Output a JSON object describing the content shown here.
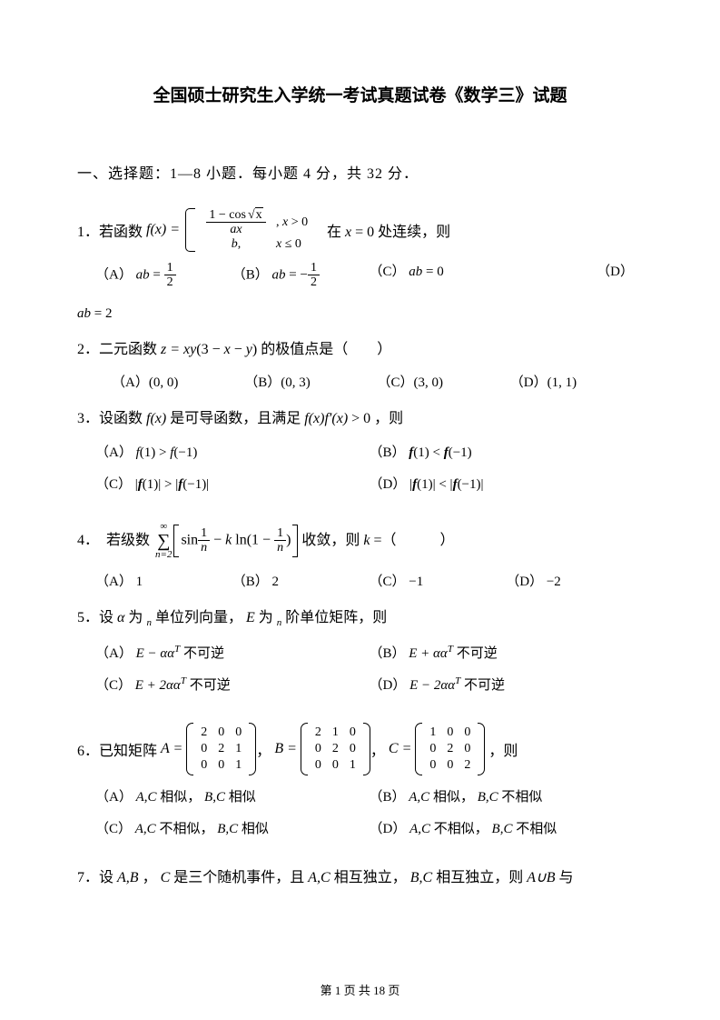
{
  "title": "全国硕士研究生入学统一考试真题试卷《数学三》试题",
  "section": "一、选择题：1—8 小题．每小题 4 分，共 32 分．",
  "q1": {
    "lead": "1．若函数",
    "func": "f(x) =",
    "row1a": "(1 − cos√x) / ax",
    "row1b": ", x > 0",
    "row2a": "b,",
    "row2b": "x ≤ 0",
    "tail": "在 x = 0 处连续，则",
    "optA": "（A） ab = 1/2",
    "optB": "（B） ab = −1/2",
    "optC": "（C） ab = 0",
    "optD": "（D）",
    "optD2": "ab = 2"
  },
  "q2": {
    "text": "2．二元函数 z = xy(3 − x − y) 的极值点是（　　）",
    "optA": "（A）(0, 0)",
    "optB": "（B）(0, 3)",
    "optC": "（C）(3, 0)",
    "optD": "（D）(1, 1)"
  },
  "q3": {
    "text": "3．设函数 f(x) 是可导函数，且满足 f(x)f′(x) > 0 ，则",
    "optA": "（A） f(1) > f(−1)",
    "optB": "（B） f(1) < f(−1)",
    "optC": "（C） |f(1)| > |f(−1)|",
    "optD": "（D） |f(1)| < |f(−1)|"
  },
  "q4": {
    "lead": "4．　若级数",
    "tail": "收敛，则 k =（　　　）",
    "optA": "（A） 1",
    "optB": "（B） 2",
    "optC": "（C） −1",
    "optD": "（D） −2"
  },
  "q5": {
    "text": "5．设 α 为 n 单位列向量， E 为 n 阶单位矩阵，则",
    "optA": "（A） E − ααᵀ 不可逆",
    "optB": "（B） E + ααᵀ 不可逆",
    "optC": "（C） E + 2ααᵀ 不可逆",
    "optD": "（D） E − 2ααᵀ 不可逆"
  },
  "q6": {
    "lead": "6．已知矩阵",
    "A": [
      [
        "2",
        "0",
        "0"
      ],
      [
        "0",
        "2",
        "1"
      ],
      [
        "0",
        "0",
        "1"
      ]
    ],
    "B": [
      [
        "2",
        "1",
        "0"
      ],
      [
        "0",
        "2",
        "0"
      ],
      [
        "0",
        "0",
        "1"
      ]
    ],
    "C": [
      [
        "1",
        "0",
        "0"
      ],
      [
        "0",
        "2",
        "0"
      ],
      [
        "0",
        "0",
        "2"
      ]
    ],
    "tail": "，则",
    "optA": "（A） A,C 相似， B,C 相似",
    "optB": "（B） A,C 相似， B,C 不相似",
    "optC": "（C） A,C 不相似， B,C 相似",
    "optD": "（D） A,C 不相似， B,C 不相似"
  },
  "q7": {
    "text": "7．设 A,B ， C 是三个随机事件，且 A,C 相互独立， B,C 相互独立，则 A∪B 与"
  },
  "footer": "第 1 页 共 18 页"
}
